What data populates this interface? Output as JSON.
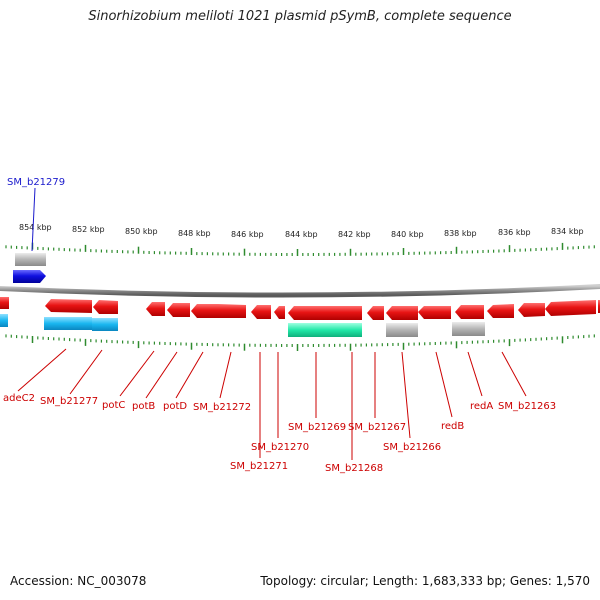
{
  "title": "Sinorhizobium meliloti 1021 plasmid pSymB, complete sequence",
  "footer": {
    "accession": "Accession: NC_003078",
    "summary": "Topology: circular; Length: 1,683,333 bp; Genes: 1,570"
  },
  "colors": {
    "forward_gene": "#1010e0",
    "reverse_gene": "#dd1111",
    "rna_or_feature_cyan": "#19b6f0",
    "feature_green": "#22e8a8",
    "pseudo_grey": "#b4b4b4",
    "backbone": "#8c8c8c",
    "ticks": "#2e8b2e",
    "label_red": "#cc0000",
    "label_blue": "#1a1acc"
  },
  "scale_labels": [
    "854 kbp",
    "852 kbp",
    "850 kbp",
    "848 kbp",
    "846 kbp",
    "844 kbp",
    "842 kbp",
    "840 kbp",
    "838 kbp",
    "836 kbp",
    "834 kbp"
  ],
  "top_labels": [
    {
      "text": "SM_b21279",
      "color": "blue"
    }
  ],
  "bottom_labels": [
    {
      "text": "adeC2"
    },
    {
      "text": "SM_b21277"
    },
    {
      "text": "potC"
    },
    {
      "text": "potB"
    },
    {
      "text": "potD"
    },
    {
      "text": "SM_b21272"
    },
    {
      "text": "SM_b21270"
    },
    {
      "text": "SM_b21271"
    },
    {
      "text": "SM_b21269"
    },
    {
      "text": "SM_b21268"
    },
    {
      "text": "SM_b21267"
    },
    {
      "text": "SM_b21266"
    },
    {
      "text": "redB"
    },
    {
      "text": "redA"
    },
    {
      "text": "SM_b21263"
    }
  ]
}
